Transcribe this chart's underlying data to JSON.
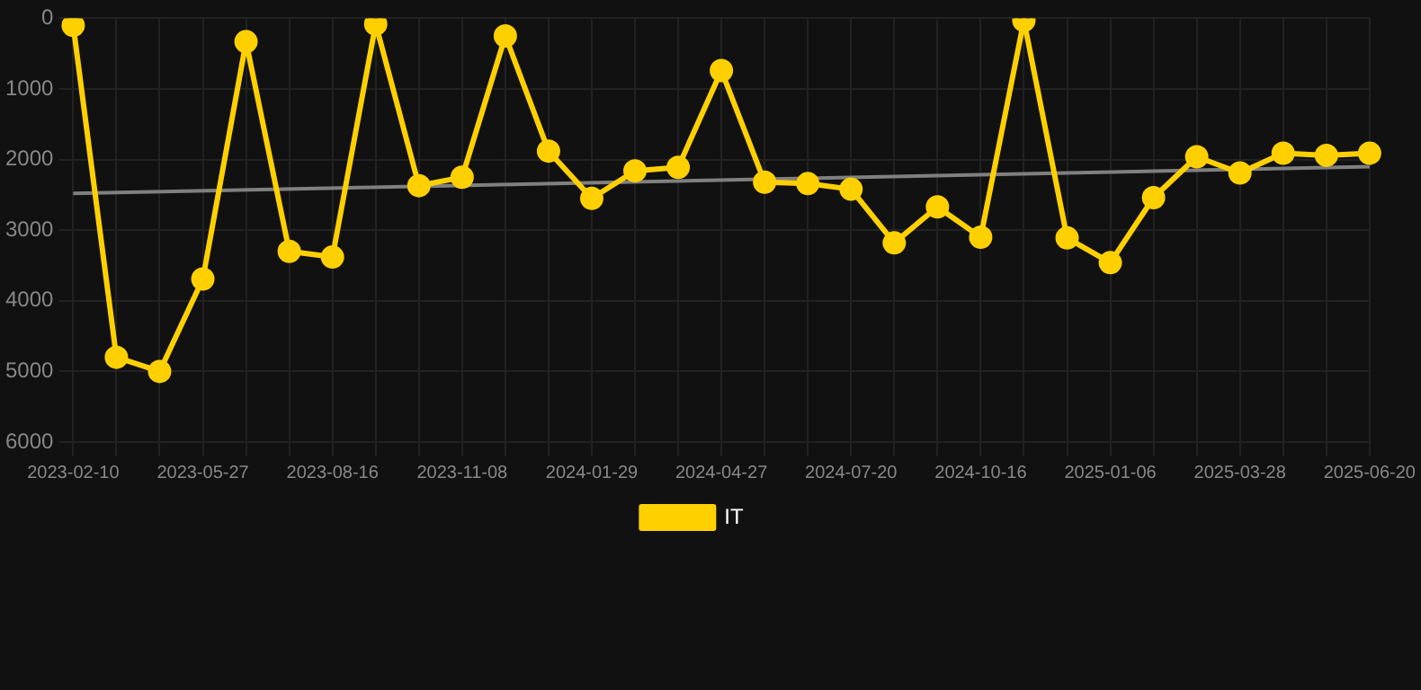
{
  "chart_data": {
    "type": "line",
    "categories": [
      "2023-02-10",
      null,
      null,
      "2023-05-27",
      null,
      null,
      "2023-08-16",
      null,
      null,
      "2023-11-08",
      null,
      null,
      "2024-01-29",
      null,
      null,
      "2024-04-27",
      null,
      null,
      "2024-07-20",
      null,
      null,
      "2024-10-16",
      null,
      null,
      "2025-01-06",
      null,
      null,
      "2025-03-28",
      null,
      null,
      "2025-06-20"
    ],
    "series": [
      {
        "name": "IT",
        "color": "#ffd000",
        "values": [
          100,
          4800,
          5000,
          3690,
          330,
          3300,
          3380,
          80,
          2370,
          2250,
          250,
          1880,
          2550,
          2160,
          2110,
          740,
          2320,
          2340,
          2420,
          3180,
          2670,
          3100,
          30,
          3110,
          3460,
          2540,
          1960,
          2190,
          1910,
          1940,
          1910
        ]
      },
      {
        "type": "line",
        "color": "#808080",
        "marker": "none",
        "values": [
          2480,
          null,
          null,
          null,
          null,
          null,
          null,
          null,
          null,
          null,
          null,
          null,
          null,
          null,
          null,
          null,
          null,
          null,
          null,
          null,
          null,
          null,
          null,
          null,
          null,
          null,
          null,
          null,
          null,
          null,
          2100
        ]
      }
    ],
    "ylim": [
      6000,
      0
    ],
    "yticks": [
      0,
      1000,
      2000,
      3000,
      4000,
      5000,
      6000
    ],
    "grid": true,
    "legend": "bottom",
    "marker": "circle"
  }
}
